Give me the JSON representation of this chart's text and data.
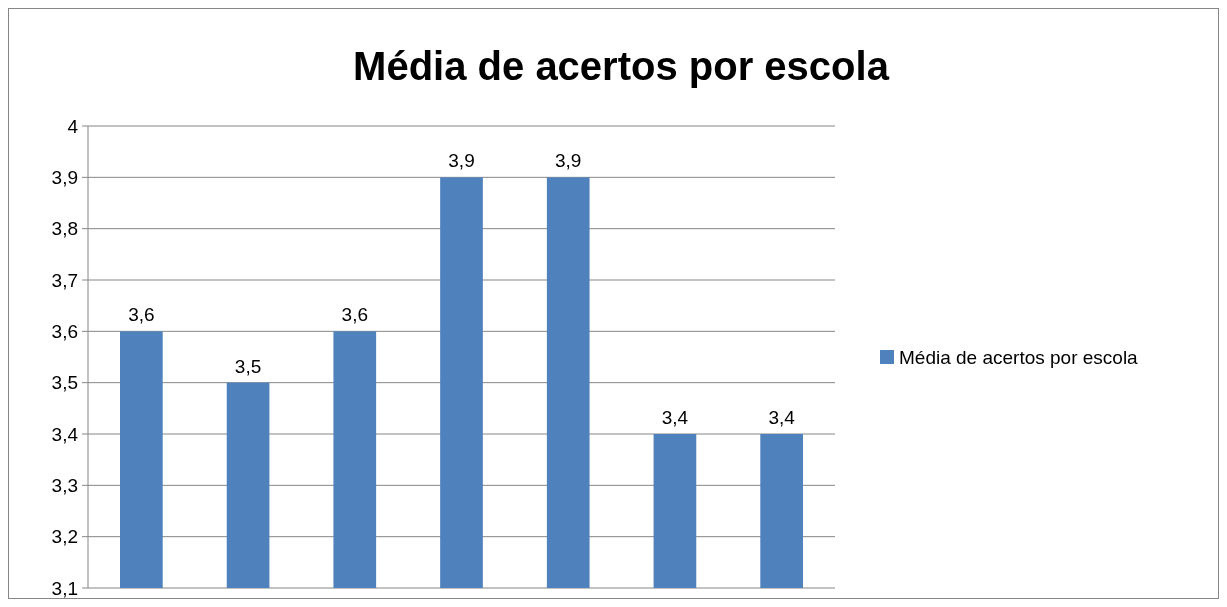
{
  "chart_data": {
    "type": "bar",
    "title": "Média de acertos por escola",
    "categories": [
      null,
      null,
      null,
      null,
      null,
      null,
      null
    ],
    "series": [
      {
        "name": "Média de acertos por escola",
        "color": "#4f81bd",
        "values": [
          3.6,
          3.5,
          3.6,
          3.9,
          3.9,
          3.4,
          3.4
        ],
        "value_labels": [
          "3,6",
          "3,5",
          "3,6",
          "3,9",
          "3,9",
          "3,4",
          "3,4"
        ]
      }
    ],
    "ylim": [
      3.1,
      4
    ],
    "yticks": [
      {
        "value": 3.1,
        "label": "3,1"
      },
      {
        "value": 3.2,
        "label": "3,2"
      },
      {
        "value": 3.3,
        "label": "3,3"
      },
      {
        "value": 3.4,
        "label": "3,4"
      },
      {
        "value": 3.5,
        "label": "3,5"
      },
      {
        "value": 3.6,
        "label": "3,6"
      },
      {
        "value": 3.7,
        "label": "3,7"
      },
      {
        "value": 3.8,
        "label": "3,8"
      },
      {
        "value": 3.9,
        "label": "3,9"
      },
      4
    ],
    "grid": "y",
    "legend": "right"
  }
}
